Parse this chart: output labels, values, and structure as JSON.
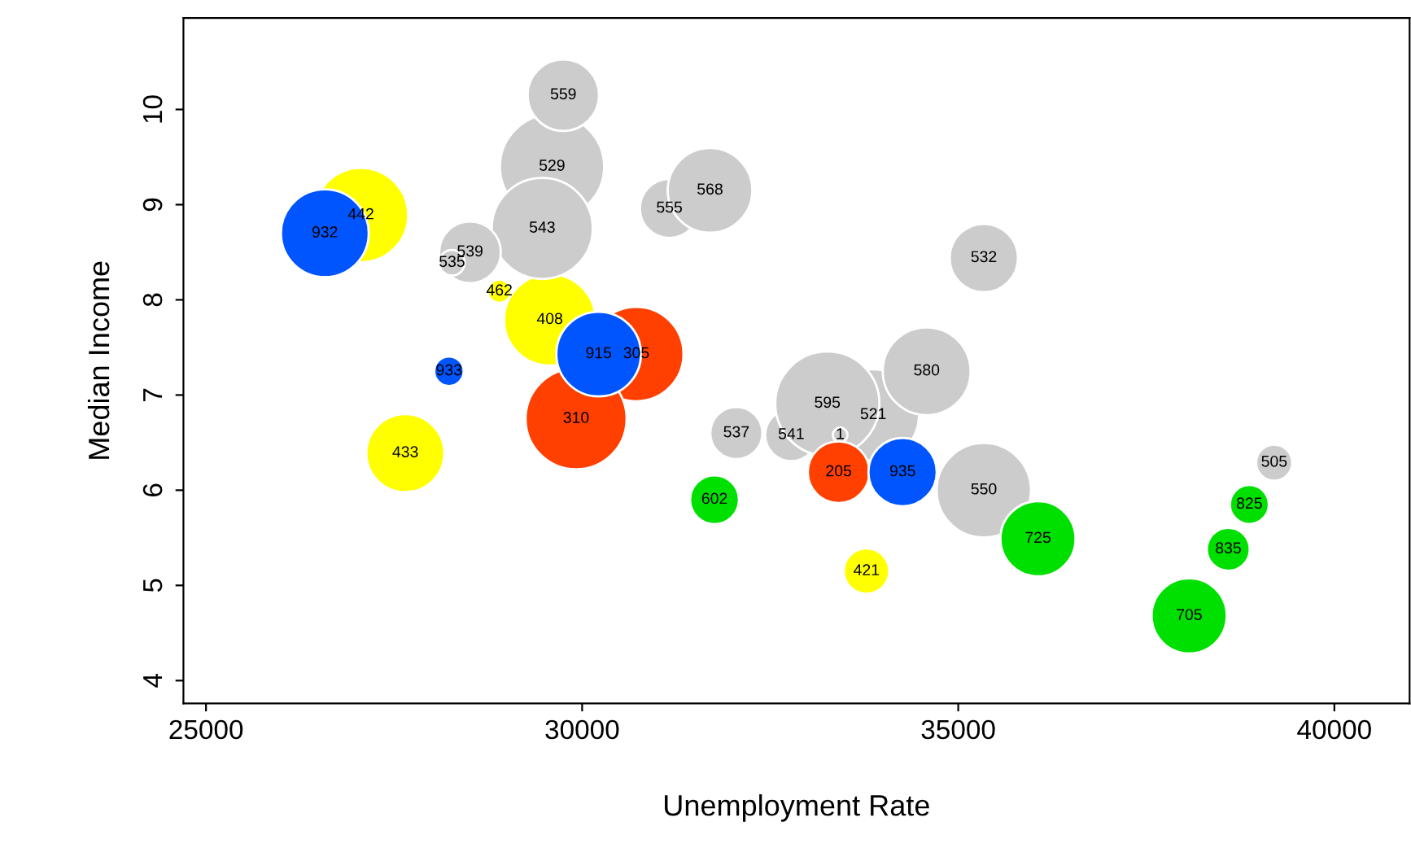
{
  "chart_data": {
    "type": "bubble",
    "xlabel": "Unemployment Rate",
    "ylabel": "Median Income",
    "xlim": [
      24700,
      41000
    ],
    "ylim": [
      3.76,
      10.96
    ],
    "xticks": [
      25000,
      30000,
      35000,
      40000
    ],
    "yticks": [
      4,
      5,
      6,
      7,
      8,
      9,
      10
    ],
    "grid": false,
    "series": [
      {
        "x": [
          27060,
          26580,
          29600,
          29750,
          29570,
          29470,
          28510,
          28270,
          28900,
          30720,
          29920,
          30220,
          28230,
          27650,
          31160,
          31700,
          32050,
          32780,
          31760,
          33870,
          33260,
          33430,
          34580,
          35340,
          33410,
          34260,
          35340,
          36060,
          33780,
          39200,
          38870,
          38590,
          38070
        ],
        "values": [
          8.89,
          8.7,
          9.4,
          10.15,
          7.79,
          8.75,
          8.5,
          8.39,
          8.09,
          7.43,
          6.75,
          7.43,
          7.25,
          6.39,
          8.96,
          9.15,
          6.6,
          6.58,
          5.9,
          6.79,
          6.91,
          6.58,
          7.25,
          8.44,
          6.19,
          6.19,
          6.0,
          5.49,
          5.15,
          6.29,
          5.85,
          5.38,
          4.68
        ],
        "sizes": [
          0.82,
          0.71,
          1,
          0.47,
          0.77,
          0.94,
          0.35,
          0.06,
          0.05,
          0.82,
          0.94,
          0.66,
          0.08,
          0.56,
          0.32,
          0.66,
          0.25,
          0.25,
          0.22,
          0.77,
          1,
          0.02,
          0.71,
          0.43,
          0.35,
          0.43,
          0.82,
          0.52,
          0.19,
          0.12,
          0.14,
          0.17,
          0.52
        ],
        "colors": [
          "#ffff00",
          "#0055ff",
          "#cccccc",
          "#cccccc",
          "#ffff00",
          "#cccccc",
          "#cccccc",
          "#cccccc",
          "#ffff00",
          "#ff4000",
          "#ff4000",
          "#0055ff",
          "#0055ff",
          "#ffff00",
          "#cccccc",
          "#cccccc",
          "#cccccc",
          "#cccccc",
          "#00e000",
          "#cccccc",
          "#cccccc",
          "#cccccc",
          "#cccccc",
          "#cccccc",
          "#ff4000",
          "#0055ff",
          "#cccccc",
          "#00e000",
          "#ffff00",
          "#cccccc",
          "#00e000",
          "#00e000",
          "#00e000"
        ]
      }
    ],
    "annotations": [
      {
        "text": "442",
        "x": 27060,
        "y": 8.89
      },
      {
        "text": "932",
        "x": 26580,
        "y": 8.7
      },
      {
        "text": "529",
        "x": 29600,
        "y": 9.4
      },
      {
        "text": "559",
        "x": 29750,
        "y": 10.15
      },
      {
        "text": "408",
        "x": 29570,
        "y": 7.79
      },
      {
        "text": "543",
        "x": 29470,
        "y": 8.75
      },
      {
        "text": "539",
        "x": 28510,
        "y": 8.5
      },
      {
        "text": "535",
        "x": 28270,
        "y": 8.39
      },
      {
        "text": "462",
        "x": 28900,
        "y": 8.09
      },
      {
        "text": "305",
        "x": 30720,
        "y": 7.43
      },
      {
        "text": "310",
        "x": 29920,
        "y": 6.75
      },
      {
        "text": "915",
        "x": 30220,
        "y": 7.43
      },
      {
        "text": "933",
        "x": 28230,
        "y": 7.25
      },
      {
        "text": "433",
        "x": 27650,
        "y": 6.39
      },
      {
        "text": "555",
        "x": 31160,
        "y": 8.96
      },
      {
        "text": "568",
        "x": 31700,
        "y": 9.15
      },
      {
        "text": "537",
        "x": 32050,
        "y": 6.6
      },
      {
        "text": "541",
        "x": 32780,
        "y": 6.58
      },
      {
        "text": "602",
        "x": 31760,
        "y": 5.9
      },
      {
        "text": "521",
        "x": 33870,
        "y": 6.79
      },
      {
        "text": "595",
        "x": 33260,
        "y": 6.91
      },
      {
        "text": "1",
        "x": 33430,
        "y": 6.58
      },
      {
        "text": "580",
        "x": 34580,
        "y": 7.25
      },
      {
        "text": "532",
        "x": 35340,
        "y": 8.44
      },
      {
        "text": "205",
        "x": 33410,
        "y": 6.19
      },
      {
        "text": "935",
        "x": 34260,
        "y": 6.19
      },
      {
        "text": "550",
        "x": 35340,
        "y": 6.0
      },
      {
        "text": "725",
        "x": 36060,
        "y": 5.49
      },
      {
        "text": "421",
        "x": 33780,
        "y": 5.15
      },
      {
        "text": "505",
        "x": 39200,
        "y": 6.29
      },
      {
        "text": "825",
        "x": 38870,
        "y": 5.85
      },
      {
        "text": "835",
        "x": 38590,
        "y": 5.38
      },
      {
        "text": "705",
        "x": 38070,
        "y": 4.68
      }
    ]
  }
}
